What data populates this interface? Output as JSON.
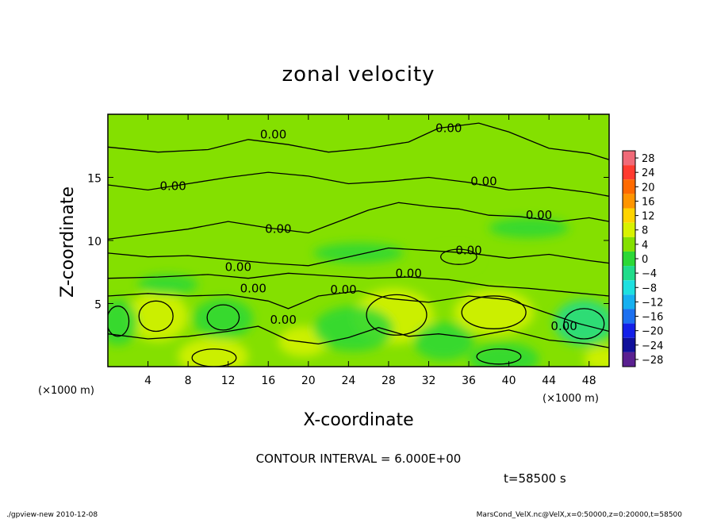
{
  "chart_data": {
    "type": "heatmap",
    "title": "zonal velocity",
    "xlabel": "X-coordinate",
    "ylabel": "Z-coordinate",
    "x_unit_note": "(×1000 m)",
    "x_unit_note_right": "(×1000 m)",
    "xlim": [
      0,
      50
    ],
    "ylim": [
      0,
      20
    ],
    "xticks": [
      4,
      8,
      12,
      16,
      20,
      24,
      28,
      32,
      36,
      40,
      44,
      48
    ],
    "yticks": [
      5,
      10,
      15
    ],
    "contour_interval_text": "CONTOUR INTERVAL = 6.000E+00",
    "time_text": "t=58500 s",
    "colorbar": {
      "levels": [
        28,
        24,
        20,
        16,
        12,
        8,
        4,
        0,
        -4,
        -8,
        -12,
        -16,
        -20,
        -24,
        -28
      ],
      "labels": [
        "28",
        "24",
        "20",
        "16",
        "12",
        "8",
        "4",
        "0",
        "−4",
        "−8",
        "−12",
        "−16",
        "−20",
        "−24",
        "−28"
      ],
      "colors": [
        "#f06a78",
        "#ff3b30",
        "#ff6a00",
        "#ff9500",
        "#ffd400",
        "#d8f200",
        "#84e000",
        "#2cd836",
        "#20dc8a",
        "#1ee0e0",
        "#16b0f0",
        "#1c70f0",
        "#1420e8",
        "#10109a",
        "#5a2090"
      ]
    },
    "contour_labels": [
      {
        "x": 16.5,
        "z": 18.4,
        "text": "0.00"
      },
      {
        "x": 34.0,
        "z": 18.9,
        "text": "0.00"
      },
      {
        "x": 6.5,
        "z": 14.3,
        "text": "0.00"
      },
      {
        "x": 37.5,
        "z": 14.7,
        "text": "0.00"
      },
      {
        "x": 43.0,
        "z": 12.0,
        "text": "0.00"
      },
      {
        "x": 17.0,
        "z": 10.9,
        "text": "0.00"
      },
      {
        "x": 36.0,
        "z": 9.2,
        "text": "0.00"
      },
      {
        "x": 13.0,
        "z": 7.9,
        "text": "0.00"
      },
      {
        "x": 30.0,
        "z": 7.4,
        "text": "0.00"
      },
      {
        "x": 14.5,
        "z": 6.2,
        "text": "0.00"
      },
      {
        "x": 23.5,
        "z": 6.1,
        "text": "0.00"
      },
      {
        "x": 17.5,
        "z": 3.7,
        "text": "0.00"
      },
      {
        "x": 45.5,
        "z": 3.2,
        "text": "0.00"
      }
    ],
    "field_blobs": [
      {
        "x": 28.5,
        "z": 4.0,
        "rx": 4.0,
        "rz": 2.2,
        "v": 6
      },
      {
        "x": 38.5,
        "z": 4.3,
        "rx": 4.0,
        "rz": 1.8,
        "v": 7
      },
      {
        "x": 5.0,
        "z": 4.0,
        "rx": 3.0,
        "rz": 2.0,
        "v": 4
      },
      {
        "x": 10.5,
        "z": 0.8,
        "rx": 3.5,
        "rz": 1.5,
        "v": 5
      },
      {
        "x": 19.5,
        "z": 2.0,
        "rx": 2.5,
        "rz": 1.2,
        "v": 4
      },
      {
        "x": 34.5,
        "z": 8.6,
        "rx": 2.5,
        "rz": 0.9,
        "v": 3
      },
      {
        "x": 49.5,
        "z": 0.6,
        "rx": 2.0,
        "rz": 1.0,
        "v": 5
      },
      {
        "x": 1.0,
        "z": 3.5,
        "rx": 2.0,
        "rz": 1.8,
        "v": -4
      },
      {
        "x": 11.5,
        "z": 3.8,
        "rx": 3.0,
        "rz": 1.6,
        "v": -4
      },
      {
        "x": 24.5,
        "z": 3.0,
        "rx": 4.0,
        "rz": 1.8,
        "v": -3
      },
      {
        "x": 33.5,
        "z": 2.0,
        "rx": 3.0,
        "rz": 1.5,
        "v": -4
      },
      {
        "x": 39.5,
        "z": 0.6,
        "rx": 3.5,
        "rz": 1.3,
        "v": -4
      },
      {
        "x": 47.5,
        "z": 3.5,
        "rx": 3.0,
        "rz": 1.8,
        "v": -5
      },
      {
        "x": 6.0,
        "z": 6.5,
        "rx": 3.0,
        "rz": 0.8,
        "v": -2
      },
      {
        "x": 25.0,
        "z": 9.0,
        "rx": 4.5,
        "rz": 0.8,
        "v": -2
      },
      {
        "x": 42.0,
        "z": 11.0,
        "rx": 4.0,
        "rz": 0.8,
        "v": -2
      }
    ],
    "zero_contours": [
      [
        [
          0,
          17.4
        ],
        [
          5,
          17.0
        ],
        [
          10,
          17.2
        ],
        [
          14,
          18.0
        ],
        [
          18,
          17.6
        ],
        [
          22,
          17.0
        ],
        [
          26,
          17.3
        ],
        [
          30,
          17.8
        ],
        [
          33,
          18.9
        ],
        [
          37,
          19.3
        ],
        [
          40,
          18.6
        ],
        [
          44,
          17.3
        ],
        [
          48,
          16.9
        ],
        [
          50,
          16.4
        ]
      ],
      [
        [
          0,
          14.4
        ],
        [
          4,
          14.0
        ],
        [
          8,
          14.5
        ],
        [
          12,
          15.0
        ],
        [
          16,
          15.4
        ],
        [
          20,
          15.1
        ],
        [
          24,
          14.5
        ],
        [
          28,
          14.7
        ],
        [
          32,
          15.0
        ],
        [
          36,
          14.6
        ],
        [
          40,
          14.0
        ],
        [
          44,
          14.2
        ],
        [
          48,
          13.8
        ],
        [
          50,
          13.5
        ]
      ],
      [
        [
          0,
          10.1
        ],
        [
          4,
          10.5
        ],
        [
          8,
          10.9
        ],
        [
          12,
          11.5
        ],
        [
          16,
          11.0
        ],
        [
          20,
          10.6
        ],
        [
          24,
          11.8
        ],
        [
          26,
          12.4
        ],
        [
          29,
          13.0
        ],
        [
          32,
          12.7
        ],
        [
          35,
          12.5
        ],
        [
          38,
          12.0
        ],
        [
          41,
          11.9
        ],
        [
          45,
          11.5
        ],
        [
          48,
          11.8
        ],
        [
          50,
          11.5
        ]
      ],
      [
        [
          0,
          9.0
        ],
        [
          4,
          8.7
        ],
        [
          8,
          8.8
        ],
        [
          12,
          8.5
        ],
        [
          16,
          8.2
        ],
        [
          20,
          8.0
        ],
        [
          24,
          8.7
        ],
        [
          28,
          9.4
        ],
        [
          32,
          9.2
        ],
        [
          36,
          9.0
        ],
        [
          40,
          8.6
        ],
        [
          44,
          8.9
        ],
        [
          48,
          8.4
        ],
        [
          50,
          8.2
        ]
      ],
      [
        [
          0,
          7.0
        ],
        [
          5,
          7.1
        ],
        [
          10,
          7.3
        ],
        [
          14,
          7.0
        ],
        [
          18,
          7.4
        ],
        [
          22,
          7.2
        ],
        [
          26,
          7.0
        ],
        [
          30,
          7.1
        ],
        [
          34,
          6.9
        ],
        [
          38,
          6.4
        ],
        [
          42,
          6.2
        ],
        [
          46,
          5.9
        ],
        [
          50,
          5.6
        ]
      ],
      [
        [
          0,
          5.6
        ],
        [
          4,
          5.8
        ],
        [
          8,
          5.6
        ],
        [
          12,
          5.7
        ],
        [
          16,
          5.2
        ],
        [
          18,
          4.6
        ],
        [
          21,
          5.6
        ],
        [
          25,
          6.0
        ],
        [
          28,
          5.4
        ],
        [
          32,
          5.1
        ],
        [
          36,
          5.6
        ],
        [
          40,
          5.3
        ],
        [
          44,
          4.2
        ],
        [
          47,
          3.4
        ],
        [
          50,
          2.8
        ]
      ],
      [
        [
          0,
          2.6
        ],
        [
          4,
          2.2
        ],
        [
          8,
          2.4
        ],
        [
          12,
          2.8
        ],
        [
          15,
          3.2
        ],
        [
          18,
          2.1
        ],
        [
          21,
          1.8
        ],
        [
          24,
          2.3
        ],
        [
          27,
          3.1
        ],
        [
          30,
          2.4
        ],
        [
          33,
          2.6
        ],
        [
          36,
          2.3
        ],
        [
          40,
          2.9
        ],
        [
          44,
          2.1
        ],
        [
          48,
          1.8
        ],
        [
          50,
          1.5
        ]
      ]
    ],
    "closed_contours": [
      {
        "x": 28.8,
        "z": 4.1,
        "rx": 3.0,
        "rz": 1.6
      },
      {
        "x": 38.5,
        "z": 4.3,
        "rx": 3.2,
        "rz": 1.3
      },
      {
        "x": 4.8,
        "z": 4.0,
        "rx": 1.7,
        "rz": 1.2
      },
      {
        "x": 10.6,
        "z": 0.7,
        "rx": 2.2,
        "rz": 0.7
      },
      {
        "x": 1.0,
        "z": 3.6,
        "rx": 1.1,
        "rz": 1.2
      },
      {
        "x": 11.5,
        "z": 3.9,
        "rx": 1.6,
        "rz": 1.0
      },
      {
        "x": 47.5,
        "z": 3.4,
        "rx": 2.0,
        "rz": 1.2
      },
      {
        "x": 39.0,
        "z": 0.8,
        "rx": 2.2,
        "rz": 0.6
      },
      {
        "x": 35.0,
        "z": 8.7,
        "rx": 1.8,
        "rz": 0.6
      }
    ],
    "grid": false,
    "legend": "right"
  },
  "footer": {
    "left": "./gpview-new   2010-12-08",
    "right": "MarsCond_VelX.nc@VelX,x=0:50000,z=0:20000,t=58500"
  }
}
